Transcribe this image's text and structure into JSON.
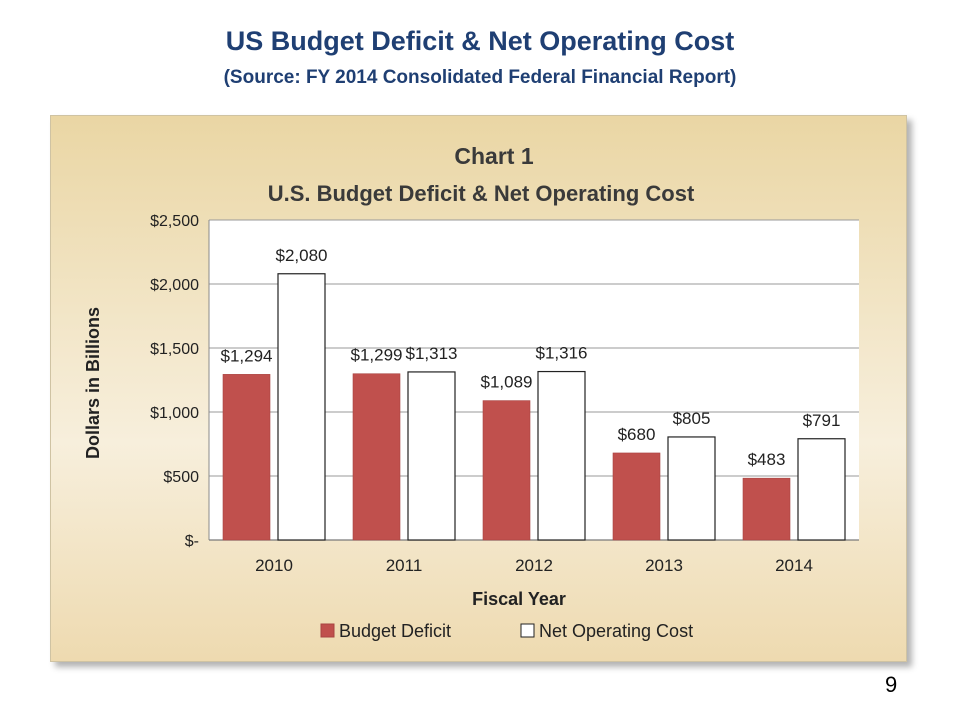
{
  "slide": {
    "title": "US Budget Deficit & Net Operating Cost",
    "subtitle": "(Source: FY 2014 Consolidated Federal Financial Report)",
    "page_number": "9"
  },
  "chart_data": {
    "type": "bar",
    "title": "Chart 1",
    "subtitle": "U.S. Budget Deficit & Net Operating Cost",
    "xlabel": "Fiscal Year",
    "ylabel": "Dollars in Billions",
    "categories": [
      "2010",
      "2011",
      "2012",
      "2013",
      "2014"
    ],
    "ylim": [
      0,
      2500
    ],
    "yticks": [
      0,
      500,
      1000,
      1500,
      2000,
      2500
    ],
    "ytick_labels": [
      "$-",
      "$500",
      "$1,000",
      "$1,500",
      "$2,000",
      "$2,500"
    ],
    "grid": "horizontal",
    "legend_position": "bottom",
    "series": [
      {
        "name": "Budget Deficit",
        "color": "#c0504d",
        "values": [
          1294,
          1299,
          1089,
          680,
          483
        ],
        "labels": [
          "$1,294",
          "$1,299",
          "$1,089",
          "$680",
          "$483"
        ]
      },
      {
        "name": "Net Operating Cost",
        "color": "#ffffff",
        "values": [
          2080,
          1313,
          1316,
          805,
          791
        ],
        "labels": [
          "$2,080",
          "$1,313",
          "$1,316",
          "$805",
          "$791"
        ]
      }
    ]
  }
}
